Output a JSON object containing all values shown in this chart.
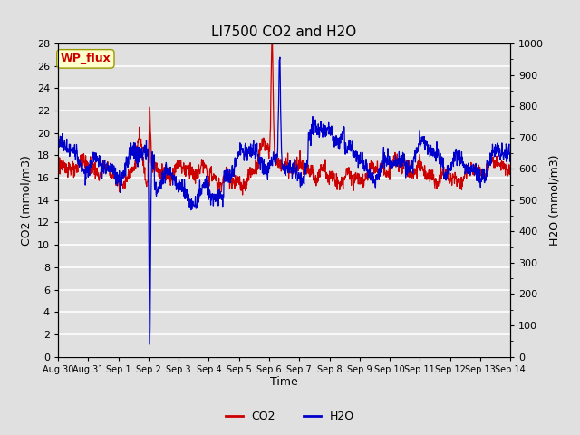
{
  "title": "LI7500 CO2 and H2O",
  "xlabel": "Time",
  "ylabel_left": "CO2 (mmol/m3)",
  "ylabel_right": "H2O (mmol/m3)",
  "left_ylim": [
    0,
    28
  ],
  "right_ylim": [
    0,
    1000
  ],
  "left_yticks": [
    0,
    2,
    4,
    6,
    8,
    10,
    12,
    14,
    16,
    18,
    20,
    22,
    24,
    26,
    28
  ],
  "right_yticks": [
    0,
    100,
    200,
    300,
    400,
    500,
    600,
    700,
    800,
    900,
    1000
  ],
  "x_tick_labels": [
    "Aug 30",
    "Aug 31",
    "Sep 1",
    "Sep 2",
    "Sep 3",
    "Sep 4",
    "Sep 5",
    "Sep 6",
    "Sep 7",
    "Sep 8",
    "Sep 9",
    "Sep 10",
    "Sep 11",
    "Sep 12",
    "Sep 13",
    "Sep 14"
  ],
  "co2_color": "#cc0000",
  "h2o_color": "#0000cc",
  "bg_color": "#e0e0e0",
  "plot_bg_color": "#e0e0e0",
  "grid_color": "#ffffff",
  "annotation_text": "WP_flux",
  "annotation_color": "#cc0000",
  "annotation_bg": "#ffffcc",
  "legend_co2": "CO2",
  "legend_h2o": "H2O",
  "title_fontsize": 11,
  "axis_fontsize": 9,
  "tick_fontsize": 8
}
